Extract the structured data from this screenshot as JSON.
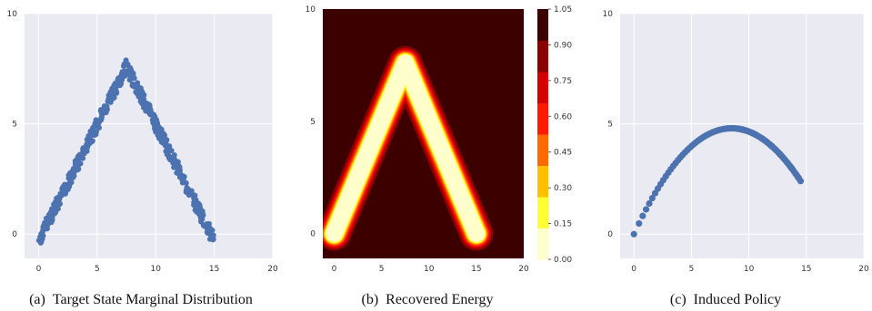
{
  "chart_data": [
    {
      "type": "scatter",
      "caption": "(a)  Target State Marginal Distribution",
      "xlim": [
        -1.2,
        20
      ],
      "ylim": [
        -1.1,
        10
      ],
      "xticks": [
        0,
        5,
        10,
        15,
        20
      ],
      "yticks": [
        0,
        5,
        10
      ],
      "grid": true,
      "background": "#eaeaf2",
      "marker_color": "#4c72b0",
      "distribution": {
        "shape": "inverted-V band",
        "apex": [
          7.5,
          7.6
        ],
        "left_end": [
          0,
          -0.3
        ],
        "right_end": [
          15,
          -0.3
        ],
        "band_halfwidth": 0.3
      }
    },
    {
      "type": "contour",
      "caption": "(b)  Recovered Energy",
      "xlim": [
        -1.2,
        20
      ],
      "ylim": [
        -1.1,
        10
      ],
      "xticks": [
        0,
        5,
        10,
        15,
        20
      ],
      "yticks": [
        0,
        5,
        10
      ],
      "colorbar": {
        "ticks": [
          "0.00",
          "0.15",
          "0.30",
          "0.45",
          "0.60",
          "0.75",
          "0.90",
          "1.05"
        ],
        "colors": [
          "#ffffcc",
          "#ffff33",
          "#ffc000",
          "#ff6a00",
          "#ff1a00",
          "#d40000",
          "#8b0000",
          "#3d0000"
        ]
      },
      "energy": {
        "shape": "inverted-V valley",
        "apex": [
          7.5,
          7.6
        ],
        "left_end": [
          0,
          0
        ],
        "right_end": [
          15,
          0
        ]
      }
    },
    {
      "type": "scatter",
      "caption": "(c)  Induced Policy",
      "xlim": [
        -1.2,
        20
      ],
      "ylim": [
        -1.1,
        10
      ],
      "xticks": [
        0,
        5,
        10,
        15,
        20
      ],
      "yticks": [
        0,
        5,
        10
      ],
      "grid": true,
      "background": "#eaeaf2",
      "marker_color": "#4c72b0",
      "curve": {
        "shape": "concave arc",
        "start": [
          0,
          0
        ],
        "peak": [
          8.5,
          4.8
        ],
        "end": [
          14.5,
          1.8
        ]
      }
    }
  ]
}
